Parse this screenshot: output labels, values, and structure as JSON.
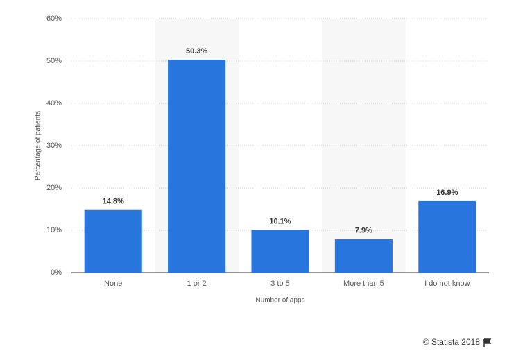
{
  "chart_data": {
    "type": "bar",
    "y_label": "Percentage of patients",
    "x_label": "Number of apps",
    "categories": [
      "None",
      "1 or 2",
      "3 to 5",
      "More than 5",
      "I do not know"
    ],
    "values": [
      14.8,
      50.3,
      10.1,
      7.9,
      16.9
    ],
    "value_labels": [
      "14.8%",
      "50.3%",
      "10.1%",
      "7.9%",
      "16.9%"
    ],
    "color": "#2876dd",
    "ylim": [
      0,
      60
    ],
    "yticks": [
      {
        "value": 0,
        "label": "0%"
      },
      {
        "value": 10,
        "label": "10%"
      },
      {
        "value": 20,
        "label": "20%"
      },
      {
        "value": 30,
        "label": "30%"
      },
      {
        "value": 40,
        "label": "40%"
      },
      {
        "value": 50,
        "label": "50%"
      },
      {
        "value": 60,
        "label": "60%"
      }
    ],
    "grid": true,
    "credit": "© Statista 2018"
  }
}
